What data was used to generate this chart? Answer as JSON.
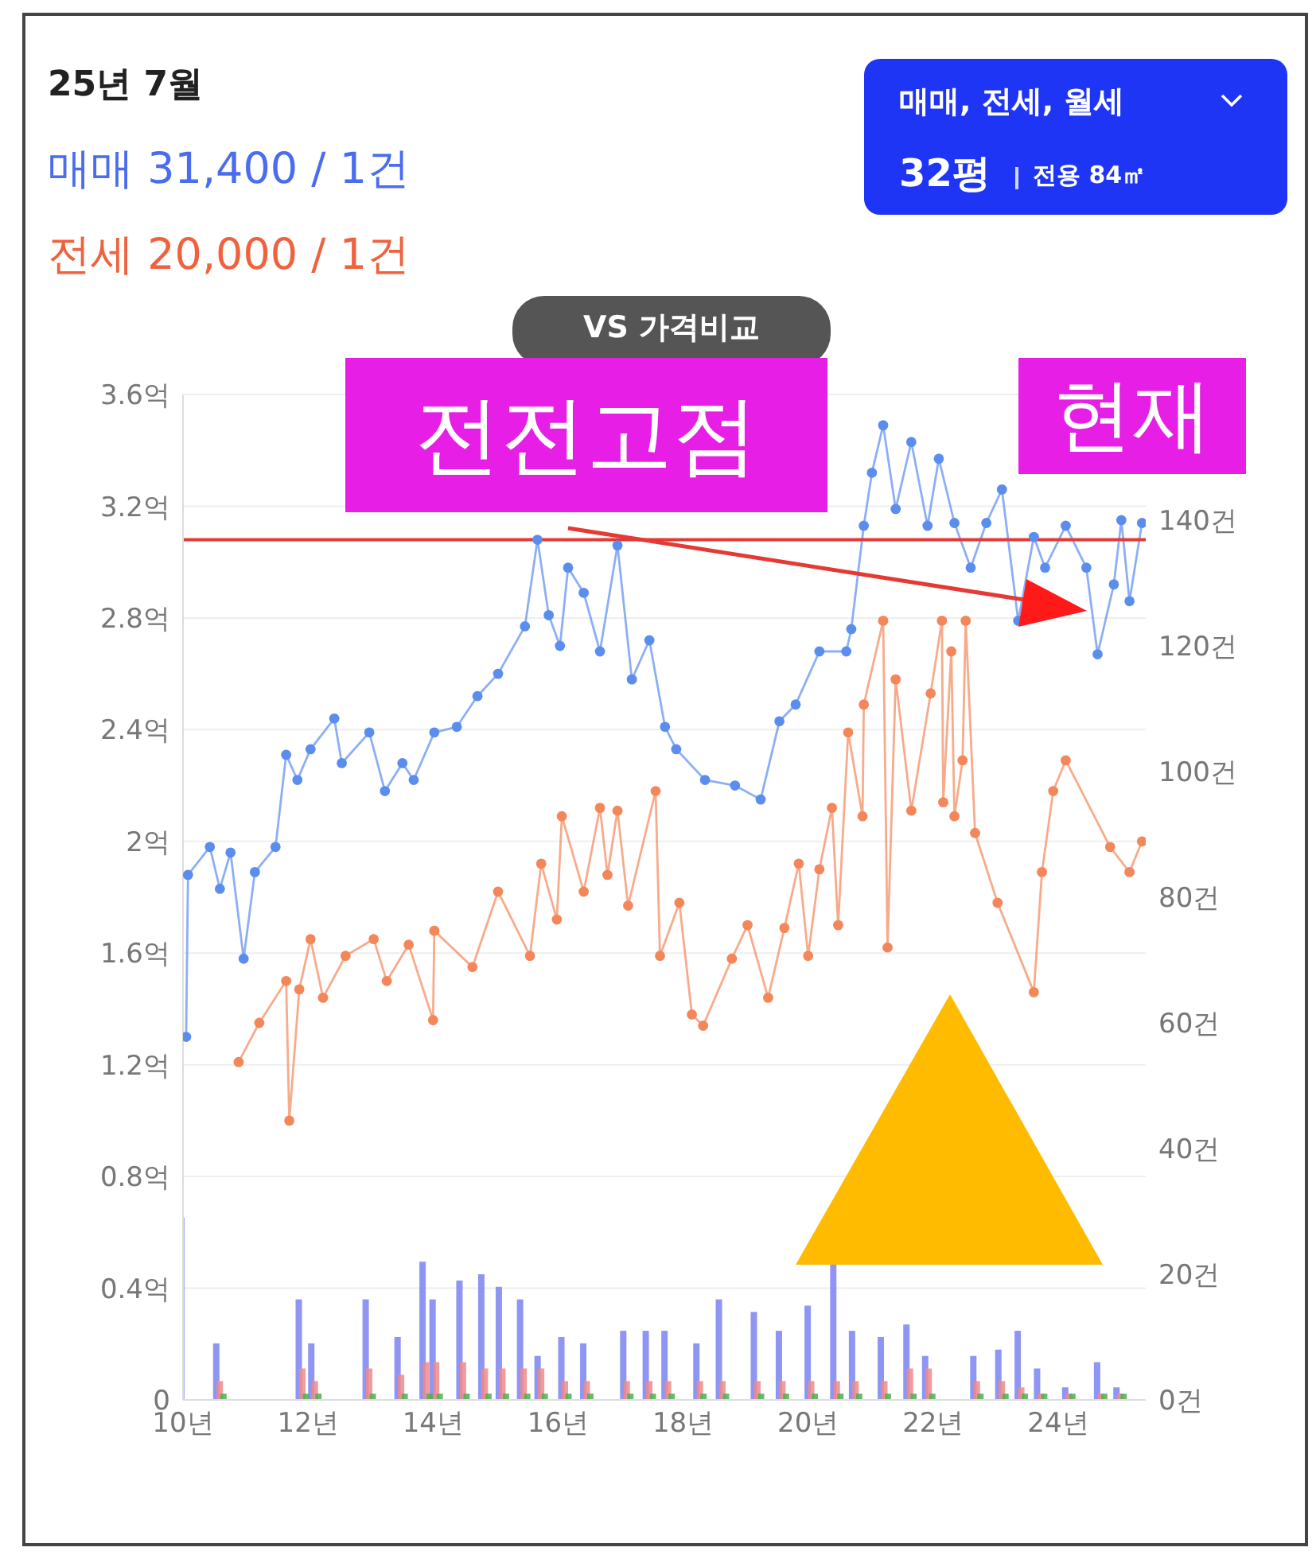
{
  "chart_data": {
    "type": "line",
    "title": "25년 7월",
    "annotations": [
      "매매 31,400 / 1건",
      "전세 20,000 / 1건",
      "VS 가격비교",
      "매매, 전세, 월세",
      "32평",
      "전용 84㎡",
      "전전고점",
      "현재"
    ],
    "xlim": [
      10,
      25.4
    ],
    "xticks": [
      {
        "value": 10,
        "label": "10년"
      },
      {
        "value": 12,
        "label": "12년"
      },
      {
        "value": 14,
        "label": "14년"
      },
      {
        "value": 16,
        "label": "16년"
      },
      {
        "value": 18,
        "label": "18년"
      },
      {
        "value": 20,
        "label": "20년"
      },
      {
        "value": 22,
        "label": "22년"
      },
      {
        "value": 24,
        "label": "24년"
      }
    ],
    "ylim": [
      0,
      3.6
    ],
    "yticks": [
      0,
      {
        "value": 0.4,
        "label": "0.4억"
      },
      {
        "value": 0.8,
        "label": "0.8억"
      },
      {
        "value": 1.2,
        "label": "1.2억"
      },
      {
        "value": 1.6,
        "label": "1.6억"
      },
      {
        "value": 2,
        "label": "2억"
      },
      {
        "value": 2.4,
        "label": "2.4억"
      },
      {
        "value": 2.8,
        "label": "2.8억"
      },
      {
        "value": 3.2,
        "label": "3.2억"
      },
      {
        "value": 3.6,
        "label": "3.6억"
      }
    ],
    "y2lim": [
      0,
      160
    ],
    "y2ticks": [
      {
        "value": 0,
        "label": "0건"
      },
      {
        "value": 20,
        "label": "20건"
      },
      {
        "value": 40,
        "label": "40건"
      },
      {
        "value": 60,
        "label": "60건"
      },
      {
        "value": 80,
        "label": "80건"
      },
      {
        "value": 100,
        "label": "100건"
      },
      {
        "value": 120,
        "label": "120건"
      },
      {
        "value": 140,
        "label": "140건"
      }
    ],
    "grid": "y",
    "marker": "circle",
    "ref_lines": [
      {
        "axis": "y",
        "value": 3.08,
        "color": "#e53935"
      }
    ],
    "series": [
      {
        "type": "bar",
        "axis": "y2",
        "color": "#7b83f0",
        "x": [
          10.03,
          10.59,
          11.91,
          12.11,
          12.98,
          13.49,
          13.89,
          14.05,
          14.48,
          14.83,
          15.11,
          15.45,
          15.73,
          16.11,
          16.46,
          17.1,
          17.46,
          17.76,
          18.27,
          18.63,
          19.19,
          19.59,
          20.05,
          20.46,
          20.76,
          21.22,
          21.63,
          21.93,
          22.7,
          23.1,
          23.41,
          23.72,
          24.17,
          24.68,
          24.99
        ],
        "values": [
          29,
          9,
          16,
          9,
          16,
          10,
          22,
          16,
          19,
          20,
          18,
          16,
          7,
          10,
          9,
          11,
          11,
          11,
          9,
          16,
          14,
          11,
          15,
          22,
          11,
          10,
          12,
          7,
          7,
          8,
          11,
          5,
          2,
          6,
          2
        ]
      },
      {
        "type": "bar",
        "axis": "y2",
        "color": "#f08a8a",
        "x": [
          10.03,
          10.59,
          11.91,
          12.11,
          12.98,
          13.49,
          13.89,
          14.05,
          14.48,
          14.83,
          15.11,
          15.45,
          15.73,
          16.11,
          16.46,
          17.1,
          17.46,
          17.76,
          18.27,
          18.63,
          19.19,
          19.59,
          20.05,
          20.46,
          20.76,
          21.22,
          21.63,
          21.93,
          22.7,
          23.1,
          23.41,
          23.72,
          24.17,
          24.68,
          24.99
        ],
        "values": [
          0,
          3,
          5,
          3,
          5,
          4,
          6,
          6,
          6,
          5,
          5,
          5,
          5,
          3,
          3,
          3,
          3,
          3,
          3,
          3,
          3,
          3,
          3,
          3,
          3,
          3,
          5,
          5,
          3,
          3,
          2,
          1,
          1,
          1,
          1
        ]
      },
      {
        "type": "bar",
        "axis": "y2",
        "color": "#4caf50",
        "x": [
          10.03,
          10.59,
          11.91,
          12.11,
          12.98,
          13.49,
          13.89,
          14.05,
          14.48,
          14.83,
          15.11,
          15.45,
          15.73,
          16.11,
          16.46,
          17.1,
          17.46,
          17.76,
          18.27,
          18.63,
          19.19,
          19.59,
          20.05,
          20.46,
          20.76,
          21.22,
          21.63,
          21.93,
          22.7,
          23.1,
          23.41,
          23.72,
          24.17,
          24.68,
          24.99
        ],
        "values": [
          0,
          1,
          1,
          1,
          1,
          1,
          1,
          1,
          1,
          1,
          1,
          1,
          1,
          1,
          1,
          1,
          1,
          1,
          1,
          1,
          1,
          1,
          1,
          1,
          1,
          1,
          1,
          1,
          1,
          1,
          1,
          1,
          1,
          1,
          1
        ]
      },
      {
        "color": "#5b8def",
        "x": [
          10.05,
          10.08,
          10.43,
          10.59,
          10.76,
          10.97,
          11.15,
          11.48,
          11.65,
          11.83,
          12.04,
          12.42,
          12.54,
          12.98,
          13.23,
          13.51,
          13.69,
          14.02,
          14.38,
          14.71,
          15.04,
          15.47,
          15.67,
          15.85,
          16.03,
          16.16,
          16.41,
          16.67,
          16.95,
          17.18,
          17.46,
          17.71,
          17.89,
          18.35,
          18.83,
          19.24,
          19.54,
          19.8,
          20.18,
          20.61,
          20.69,
          20.89,
          21.02,
          21.2,
          21.4,
          21.65,
          21.91,
          22.09,
          22.34,
          22.6,
          22.85,
          23.1,
          23.36,
          23.61,
          23.79,
          24.12,
          24.45,
          24.63,
          24.89,
          25.01,
          25.14,
          25.34
        ],
        "values": [
          1.3,
          1.88,
          1.98,
          1.83,
          1.96,
          1.58,
          1.89,
          1.98,
          2.31,
          2.22,
          2.33,
          2.44,
          2.28,
          2.39,
          2.18,
          2.28,
          2.22,
          2.39,
          2.41,
          2.52,
          2.6,
          2.77,
          3.08,
          2.81,
          2.7,
          2.98,
          2.89,
          2.68,
          3.06,
          2.58,
          2.72,
          2.41,
          2.33,
          2.22,
          2.2,
          2.15,
          2.43,
          2.49,
          2.68,
          2.68,
          2.76,
          3.13,
          3.32,
          3.49,
          3.19,
          3.43,
          3.13,
          3.37,
          3.14,
          2.98,
          3.14,
          3.26,
          2.79,
          3.09,
          2.98,
          3.13,
          2.98,
          2.67,
          2.92,
          3.15,
          2.86,
          3.14
        ]
      },
      {
        "color": "#f4875a",
        "x": [
          10.89,
          11.22,
          11.65,
          11.7,
          11.86,
          12.04,
          12.24,
          12.6,
          13.05,
          13.26,
          13.61,
          14.0,
          14.02,
          14.63,
          15.04,
          15.55,
          15.73,
          15.98,
          16.06,
          16.41,
          16.67,
          16.79,
          16.95,
          17.12,
          17.56,
          17.63,
          17.94,
          18.14,
          18.32,
          18.78,
          19.03,
          19.36,
          19.62,
          19.85,
          20.0,
          20.18,
          20.38,
          20.48,
          20.64,
          20.87,
          20.89,
          21.2,
          21.27,
          21.4,
          21.65,
          21.96,
          22.14,
          22.16,
          22.29,
          22.34,
          22.47,
          22.52,
          22.67,
          23.03,
          23.61,
          23.74,
          23.92,
          24.12,
          24.83,
          25.14,
          25.34
        ],
        "values": [
          1.21,
          1.35,
          1.5,
          1.0,
          1.47,
          1.65,
          1.44,
          1.59,
          1.65,
          1.5,
          1.63,
          1.36,
          1.68,
          1.55,
          1.82,
          1.59,
          1.92,
          1.72,
          2.09,
          1.82,
          2.12,
          1.88,
          2.11,
          1.77,
          2.18,
          1.59,
          1.78,
          1.38,
          1.34,
          1.58,
          1.7,
          1.44,
          1.69,
          1.92,
          1.59,
          1.9,
          2.12,
          1.7,
          2.39,
          2.09,
          2.49,
          2.79,
          1.62,
          2.58,
          2.11,
          2.53,
          2.79,
          2.14,
          2.68,
          2.09,
          2.29,
          2.79,
          2.03,
          1.78,
          1.46,
          1.89,
          2.18,
          2.29,
          1.98,
          1.89,
          2.0
        ]
      }
    ]
  }
}
